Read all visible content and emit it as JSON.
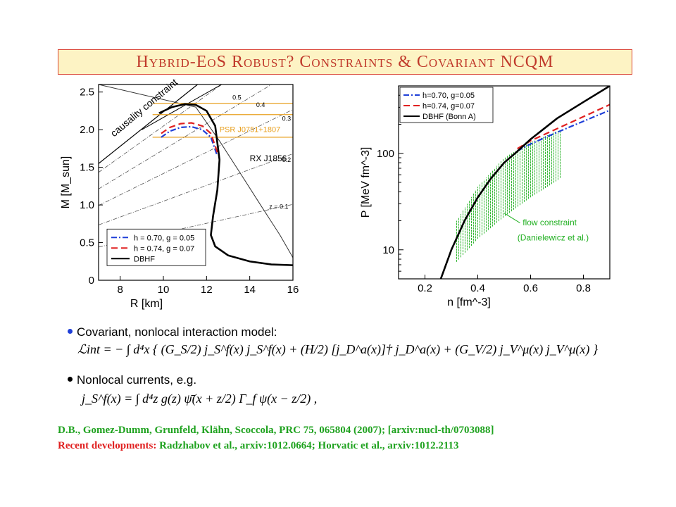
{
  "title": "Hybrid-EoS Robust? Constraints & Covariant NCQM",
  "colors": {
    "title_text": "#c0392b",
    "title_bg": "#fdf3c4",
    "title_border": "#d94030",
    "blue": "#1f3fd8",
    "red": "#e02020",
    "black": "#000000",
    "orange": "#e8a020",
    "green": "#22b022",
    "ref_green": "#1fa21f",
    "ref_red": "#e02020"
  },
  "chart_data": [
    {
      "type": "line",
      "xlabel": "R [km]",
      "ylabel": "M  [M_sun]",
      "xlim": [
        7,
        16
      ],
      "ylim": [
        0,
        2.6
      ],
      "x_ticks": [
        "8",
        "10",
        "12",
        "14",
        "16"
      ],
      "y_ticks": [
        "0",
        "0.5",
        "1.0",
        "1.5",
        "2.0",
        "2.5"
      ],
      "annotations": [
        "causality constraint",
        "PSR J0751+1807",
        "RX J1856",
        "0.5",
        "0.4",
        "0.3",
        "0.2",
        "z = 0.1"
      ],
      "legend": {
        "placement": "bottom-left",
        "entries": [
          "h = 0.70, g = 0.05",
          "h = 0.74, g = 0.07",
          "DBHF"
        ]
      },
      "series": [
        {
          "name": "h = 0.70, g = 0.05",
          "style": "dash-dot",
          "color": "blue",
          "x": [
            9.9,
            10.3,
            10.8,
            11.3,
            11.8,
            12.2,
            12.5
          ],
          "y": [
            1.9,
            1.98,
            2.03,
            2.04,
            2.0,
            1.9,
            1.65
          ]
        },
        {
          "name": "h = 0.74, g = 0.07",
          "style": "dashed",
          "color": "red",
          "x": [
            9.9,
            10.3,
            10.8,
            11.3,
            11.8,
            12.2,
            12.5
          ],
          "y": [
            1.95,
            2.03,
            2.08,
            2.09,
            2.05,
            1.95,
            1.7
          ]
        },
        {
          "name": "DBHF",
          "style": "solid",
          "color": "black",
          "x": [
            9.8,
            10.4,
            11.0,
            11.5,
            12.0,
            12.4,
            12.6,
            12.5,
            12.3,
            12.2,
            12.4,
            13.0,
            14.0,
            15.0,
            16.0
          ],
          "y": [
            2.22,
            2.3,
            2.34,
            2.33,
            2.25,
            2.05,
            1.6,
            1.2,
            0.85,
            0.6,
            0.45,
            0.33,
            0.25,
            0.21,
            0.2
          ]
        }
      ],
      "bands": [
        {
          "label": "PSR J0751+1807",
          "y": [
            1.9,
            2.2,
            2.35
          ],
          "color": "orange"
        }
      ]
    },
    {
      "type": "line",
      "xlabel": "n  [fm^-3]",
      "ylabel": "P  [MeV fm^-3]",
      "xlim": [
        0.1,
        0.9
      ],
      "ylim": [
        5,
        500
      ],
      "log_y": true,
      "x_ticks": [
        "0.2",
        "0.4",
        "0.6",
        "0.8"
      ],
      "y_ticks": [
        "10",
        "100"
      ],
      "annotations": [
        "flow constraint",
        "(Danielewicz et al.)"
      ],
      "legend": {
        "placement": "top-left",
        "entries": [
          "h=0.70, g=0.05",
          "h=0.74, g=0.07",
          "DBHF (Bonn A)"
        ]
      },
      "series": [
        {
          "name": "h=0.70, g=0.05",
          "style": "dash-dot",
          "color": "blue",
          "x": [
            0.55,
            0.6,
            0.7,
            0.8,
            0.9
          ],
          "y": [
            106,
            125,
            165,
            215,
            280
          ]
        },
        {
          "name": "h=0.74, g=0.07",
          "style": "dashed",
          "color": "red",
          "x": [
            0.55,
            0.6,
            0.7,
            0.8,
            0.9
          ],
          "y": [
            112,
            135,
            180,
            240,
            320
          ]
        },
        {
          "name": "DBHF (Bonn A)",
          "style": "solid",
          "color": "black",
          "x": [
            0.26,
            0.3,
            0.35,
            0.4,
            0.45,
            0.5,
            0.55,
            0.6,
            0.7,
            0.8,
            0.9
          ],
          "y": [
            5,
            10,
            20,
            35,
            55,
            80,
            105,
            140,
            230,
            340,
            500
          ]
        }
      ],
      "flow_constraint": {
        "color": "green",
        "n": [
          0.32,
          0.4,
          0.5,
          0.6,
          0.7,
          0.72
        ],
        "p_low": [
          7.5,
          13,
          22,
          35,
          52,
          58
        ],
        "p_high": [
          20,
          45,
          90,
          130,
          170,
          175
        ]
      }
    }
  ],
  "bullets": {
    "b1": "Covariant, nonlocal interaction model:",
    "b2": "Nonlocal currents, e.g."
  },
  "formulas": {
    "f1": "ℒint = − ∫ d⁴x { (G_S/2) j_S^f(x) j_S^f(x) + (H/2) [j_D^a(x)]† j_D^a(x) + (G_V/2) j_V^μ(x) j_V^μ(x) }",
    "f2": "j_S^f(x) = ∫ d⁴z g(z) ψ̄(x + z/2) Γ_f ψ(x − z/2) ,"
  },
  "references": {
    "ref1": "D.B., Gomez-Dumm, Grunfeld, Klähn, Scoccola, PRC 75, 065804 (2007); [arxiv:nucl-th/0703088]",
    "ref2_label": "Recent developments:",
    "ref2_text": " Radzhabov et al., arxiv:1012.0664; Horvatic et al., arxiv:1012.2113"
  }
}
